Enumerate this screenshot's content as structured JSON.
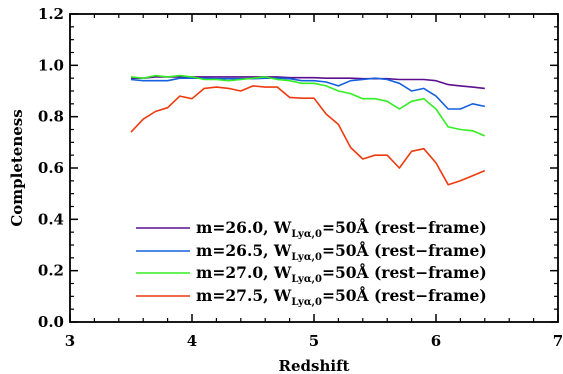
{
  "chart_data": {
    "type": "line",
    "title": "",
    "xlabel": "Redshift",
    "ylabel": "Completeness",
    "xlim": [
      3,
      7
    ],
    "ylim": [
      0,
      1.2
    ],
    "xticks": [
      3,
      4,
      5,
      6,
      7
    ],
    "xtick_labels": [
      "3",
      "4",
      "5",
      "6",
      "7"
    ],
    "yticks": [
      0.0,
      0.2,
      0.4,
      0.6,
      0.8,
      1.0,
      1.2
    ],
    "ytick_labels": [
      "0.0",
      "0.2",
      "0.4",
      "0.6",
      "0.8",
      "1.0",
      "1.2"
    ],
    "grid": false,
    "legend_position": "bottom-right",
    "series": [
      {
        "name": "m=26.0, W_Lyα,0=50Å (rest−frame)",
        "legend": {
          "prefix": "m=26.0, W",
          "subscript": "Lyα,0",
          "suffix": "=50Å (rest−frame)"
        },
        "color": "#5b0f8f",
        "x": [
          3.5,
          3.6,
          3.7,
          3.8,
          3.9,
          4.0,
          4.1,
          4.2,
          4.3,
          4.4,
          4.5,
          4.6,
          4.7,
          4.8,
          4.9,
          5.0,
          5.1,
          5.2,
          5.3,
          5.4,
          5.5,
          5.6,
          5.7,
          5.8,
          5.9,
          6.0,
          6.1,
          6.2,
          6.3,
          6.4
        ],
        "y": [
          0.95,
          0.95,
          0.955,
          0.955,
          0.955,
          0.955,
          0.955,
          0.955,
          0.955,
          0.955,
          0.955,
          0.955,
          0.955,
          0.952,
          0.952,
          0.952,
          0.95,
          0.95,
          0.95,
          0.948,
          0.948,
          0.948,
          0.945,
          0.945,
          0.945,
          0.94,
          0.925,
          0.92,
          0.915,
          0.91
        ]
      },
      {
        "name": "m=26.5, W_Lyα,0=50Å (rest−frame)",
        "legend": {
          "prefix": "m=26.5, W",
          "subscript": "Lyα,0",
          "suffix": "=50Å (rest−frame)"
        },
        "color": "#1560e0",
        "x": [
          3.5,
          3.6,
          3.7,
          3.8,
          3.9,
          4.0,
          4.1,
          4.2,
          4.3,
          4.4,
          4.5,
          4.6,
          4.7,
          4.8,
          4.9,
          5.0,
          5.1,
          5.2,
          5.3,
          5.4,
          5.5,
          5.6,
          5.7,
          5.8,
          5.9,
          6.0,
          6.1,
          6.2,
          6.3,
          6.4
        ],
        "y": [
          0.945,
          0.94,
          0.94,
          0.94,
          0.95,
          0.95,
          0.95,
          0.948,
          0.948,
          0.948,
          0.948,
          0.95,
          0.95,
          0.948,
          0.94,
          0.94,
          0.935,
          0.92,
          0.94,
          0.945,
          0.95,
          0.945,
          0.93,
          0.9,
          0.91,
          0.88,
          0.83,
          0.83,
          0.85,
          0.84
        ]
      },
      {
        "name": "m=27.0, W_Lyα,0=50Å (rest−frame)",
        "legend": {
          "prefix": "m=27.0, W",
          "subscript": "Lyα,0",
          "suffix": "=50Å (rest−frame)"
        },
        "color": "#33ee22",
        "x": [
          3.5,
          3.6,
          3.7,
          3.8,
          3.9,
          4.0,
          4.1,
          4.2,
          4.3,
          4.4,
          4.5,
          4.6,
          4.7,
          4.8,
          4.9,
          5.0,
          5.1,
          5.2,
          5.3,
          5.4,
          5.5,
          5.6,
          5.7,
          5.8,
          5.9,
          6.0,
          6.1,
          6.2,
          6.3,
          6.4
        ],
        "y": [
          0.955,
          0.95,
          0.96,
          0.955,
          0.96,
          0.955,
          0.945,
          0.945,
          0.94,
          0.945,
          0.95,
          0.955,
          0.945,
          0.94,
          0.93,
          0.93,
          0.92,
          0.9,
          0.89,
          0.87,
          0.87,
          0.86,
          0.83,
          0.86,
          0.87,
          0.83,
          0.76,
          0.75,
          0.745,
          0.725
        ]
      },
      {
        "name": "m=27.5, W_Lyα,0=50Å (rest−frame)",
        "legend": {
          "prefix": "m=27.5, W",
          "subscript": "Lyα,0",
          "suffix": "=50Å (rest−frame)"
        },
        "color": "#ee3a0e",
        "x": [
          3.5,
          3.6,
          3.7,
          3.8,
          3.9,
          4.0,
          4.1,
          4.2,
          4.3,
          4.4,
          4.5,
          4.6,
          4.7,
          4.8,
          4.9,
          5.0,
          5.1,
          5.2,
          5.3,
          5.4,
          5.5,
          5.6,
          5.7,
          5.8,
          5.9,
          6.0,
          6.1,
          6.2,
          6.3,
          6.4
        ],
        "y": [
          0.74,
          0.79,
          0.82,
          0.835,
          0.88,
          0.87,
          0.91,
          0.915,
          0.91,
          0.9,
          0.92,
          0.915,
          0.915,
          0.875,
          0.872,
          0.872,
          0.81,
          0.77,
          0.68,
          0.635,
          0.65,
          0.65,
          0.6,
          0.665,
          0.675,
          0.62,
          0.535,
          0.55,
          0.57,
          0.59
        ]
      }
    ]
  }
}
